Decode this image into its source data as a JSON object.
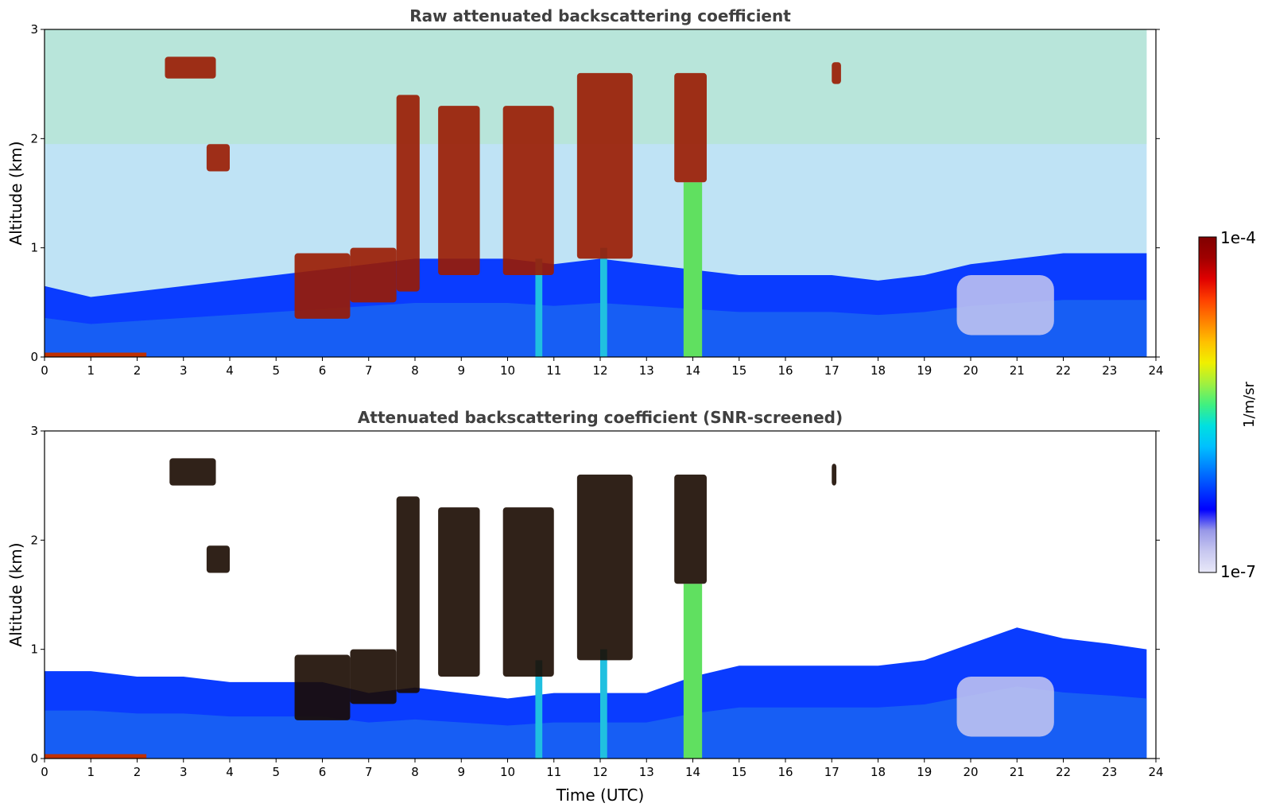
{
  "chart_data": [
    {
      "type": "heatmap",
      "title": "Raw attenuated backscattering coefficient",
      "xlabel": "",
      "ylabel": "Altitude (km)",
      "xlim": [
        0,
        24
      ],
      "ylim": [
        0,
        3
      ],
      "xticks": [
        "0",
        "1",
        "2",
        "3",
        "4",
        "5",
        "6",
        "7",
        "8",
        "9",
        "10",
        "11",
        "12",
        "13",
        "14",
        "15",
        "16",
        "17",
        "18",
        "19",
        "20",
        "21",
        "22",
        "23",
        "24"
      ],
      "yticks": [
        "0",
        "1",
        "2",
        "3"
      ],
      "data_end_x": 23.8,
      "boundary_layer_top": [
        [
          0,
          0.65
        ],
        [
          1,
          0.55
        ],
        [
          2,
          0.6
        ],
        [
          3,
          0.65
        ],
        [
          4,
          0.7
        ],
        [
          5,
          0.75
        ],
        [
          6,
          0.8
        ],
        [
          7,
          0.85
        ],
        [
          8,
          0.9
        ],
        [
          9,
          0.9
        ],
        [
          10,
          0.9
        ],
        [
          11,
          0.85
        ],
        [
          12,
          0.9
        ],
        [
          13,
          0.85
        ],
        [
          14,
          0.8
        ],
        [
          15,
          0.75
        ],
        [
          16,
          0.75
        ],
        [
          17,
          0.75
        ],
        [
          18,
          0.7
        ],
        [
          19,
          0.75
        ],
        [
          20,
          0.85
        ],
        [
          21,
          0.9
        ],
        [
          22,
          0.95
        ],
        [
          23,
          0.95
        ],
        [
          23.8,
          0.95
        ]
      ],
      "clouds": [
        {
          "x": [
            2.6,
            3.7
          ],
          "y": [
            2.55,
            2.75
          ]
        },
        {
          "x": [
            3.5,
            4.0
          ],
          "y": [
            1.7,
            1.95
          ]
        },
        {
          "x": [
            5.4,
            6.6
          ],
          "y": [
            0.35,
            0.95
          ]
        },
        {
          "x": [
            6.6,
            7.6
          ],
          "y": [
            0.5,
            1.0
          ]
        },
        {
          "x": [
            7.6,
            8.1
          ],
          "y": [
            0.6,
            2.4
          ]
        },
        {
          "x": [
            8.5,
            9.4
          ],
          "y": [
            0.75,
            2.3
          ]
        },
        {
          "x": [
            9.9,
            11.0
          ],
          "y": [
            0.75,
            2.3
          ]
        },
        {
          "x": [
            11.5,
            12.7
          ],
          "y": [
            0.9,
            2.6
          ]
        },
        {
          "x": [
            13.6,
            14.3
          ],
          "y": [
            1.6,
            2.6
          ]
        },
        {
          "x": [
            17.0,
            17.2
          ],
          "y": [
            2.5,
            2.7
          ]
        }
      ],
      "precip_columns": [
        {
          "x": [
            10.6,
            10.75
          ],
          "y": [
            0,
            0.9
          ]
        },
        {
          "x": [
            12.0,
            12.15
          ],
          "y": [
            0,
            1.0
          ]
        },
        {
          "x": [
            13.8,
            14.2
          ],
          "y": [
            0,
            1.6
          ]
        }
      ],
      "aerosol_plumes": [
        {
          "x": [
            19.7,
            21.8
          ],
          "y": [
            0.2,
            0.75
          ]
        }
      ]
    },
    {
      "type": "heatmap",
      "title": "Attenuated backscattering coefficient (SNR-screened)",
      "xlabel": "Time (UTC)",
      "ylabel": "Altitude (km)",
      "xlim": [
        0,
        24
      ],
      "ylim": [
        0,
        3
      ],
      "xticks": [
        "0",
        "1",
        "2",
        "3",
        "4",
        "5",
        "6",
        "7",
        "8",
        "9",
        "10",
        "11",
        "12",
        "13",
        "14",
        "15",
        "16",
        "17",
        "18",
        "19",
        "20",
        "21",
        "22",
        "23",
        "24"
      ],
      "yticks": [
        "0",
        "1",
        "2",
        "3"
      ],
      "data_end_x": 23.8,
      "boundary_layer_top": [
        [
          0,
          0.8
        ],
        [
          1,
          0.8
        ],
        [
          2,
          0.75
        ],
        [
          3,
          0.75
        ],
        [
          4,
          0.7
        ],
        [
          5,
          0.7
        ],
        [
          6,
          0.7
        ],
        [
          7,
          0.6
        ],
        [
          8,
          0.65
        ],
        [
          9,
          0.6
        ],
        [
          10,
          0.55
        ],
        [
          11,
          0.6
        ],
        [
          12,
          0.6
        ],
        [
          13,
          0.6
        ],
        [
          14,
          0.75
        ],
        [
          15,
          0.85
        ],
        [
          16,
          0.85
        ],
        [
          17,
          0.85
        ],
        [
          18,
          0.85
        ],
        [
          19,
          0.9
        ],
        [
          20,
          1.05
        ],
        [
          21,
          1.2
        ],
        [
          22,
          1.1
        ],
        [
          23,
          1.05
        ],
        [
          23.8,
          1.0
        ]
      ],
      "clouds": [
        {
          "x": [
            2.7,
            3.7
          ],
          "y": [
            2.5,
            2.75
          ]
        },
        {
          "x": [
            3.5,
            4.0
          ],
          "y": [
            1.7,
            1.95
          ]
        },
        {
          "x": [
            5.4,
            6.6
          ],
          "y": [
            0.35,
            0.95
          ]
        },
        {
          "x": [
            6.6,
            7.6
          ],
          "y": [
            0.5,
            1.0
          ]
        },
        {
          "x": [
            7.6,
            8.1
          ],
          "y": [
            0.6,
            2.4
          ]
        },
        {
          "x": [
            8.5,
            9.4
          ],
          "y": [
            0.75,
            2.3
          ]
        },
        {
          "x": [
            9.9,
            11.0
          ],
          "y": [
            0.75,
            2.3
          ]
        },
        {
          "x": [
            11.5,
            12.7
          ],
          "y": [
            0.9,
            2.6
          ]
        },
        {
          "x": [
            13.6,
            14.3
          ],
          "y": [
            1.6,
            2.6
          ]
        },
        {
          "x": [
            17.0,
            17.1
          ],
          "y": [
            2.5,
            2.7
          ]
        }
      ],
      "precip_columns": [
        {
          "x": [
            10.6,
            10.75
          ],
          "y": [
            0,
            0.9
          ]
        },
        {
          "x": [
            12.0,
            12.15
          ],
          "y": [
            0,
            1.0
          ]
        },
        {
          "x": [
            13.8,
            14.2
          ],
          "y": [
            0,
            1.6
          ]
        }
      ],
      "aerosol_plumes": [
        {
          "x": [
            19.7,
            21.8
          ],
          "y": [
            0.2,
            0.75
          ]
        }
      ]
    }
  ],
  "colorbar": {
    "max_label": "1e-4",
    "min_label": "1e-7",
    "unit": "1/m/sr",
    "colors": [
      "#e8e8f8",
      "#c8c8f0",
      "#9898e8",
      "#0000ff",
      "#0040ff",
      "#0080ff",
      "#00c0ff",
      "#00e0e0",
      "#40f080",
      "#a0f040",
      "#f0f000",
      "#ffc000",
      "#ff8000",
      "#ff4000",
      "#e00000",
      "#a00000",
      "#800000"
    ]
  }
}
